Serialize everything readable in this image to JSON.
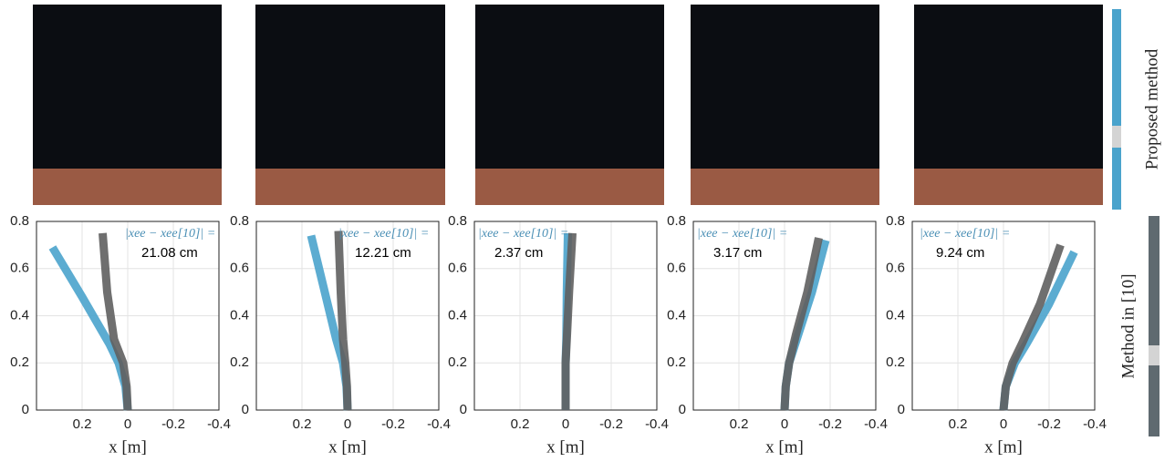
{
  "legend": [
    {
      "name": "Proposed method",
      "color": "#4aa3cc"
    },
    {
      "name": "Method in [10]",
      "color": "#5f6a70"
    }
  ],
  "chart_data": [
    {
      "type": "line",
      "annotation": "|xee − xee[10]| =",
      "error_label": "21.08 cm",
      "xlabel": "x [m]",
      "xlim": [
        0.4,
        -0.4
      ],
      "xticks": [
        0.2,
        0,
        -0.2,
        -0.4
      ],
      "ylim": [
        0,
        0.8
      ],
      "yticks": [
        0,
        0.2,
        0.4,
        0.6,
        0.8
      ],
      "grid": true,
      "series": [
        {
          "color": "#4aa3cc",
          "x": [
            0,
            0.01,
            0.04,
            0.08,
            0.2,
            0.33
          ],
          "y": [
            0,
            0.1,
            0.2,
            0.28,
            0.48,
            0.69
          ]
        },
        {
          "color": "#5f5f5f",
          "x": [
            0,
            0.005,
            0.02,
            0.06,
            0.09,
            0.11
          ],
          "y": [
            0,
            0.1,
            0.2,
            0.3,
            0.5,
            0.75
          ]
        }
      ]
    },
    {
      "type": "line",
      "annotation": "|xee − xee[10]| =",
      "error_label": "12.21 cm",
      "xlabel": "x [m]",
      "xlim": [
        0.4,
        -0.4
      ],
      "xticks": [
        0.2,
        0,
        -0.2,
        -0.4
      ],
      "ylim": [
        0,
        0.8
      ],
      "yticks": [
        0,
        0.2,
        0.4,
        0.6,
        0.8
      ],
      "grid": true,
      "series": [
        {
          "color": "#4aa3cc",
          "x": [
            0,
            0.005,
            0.02,
            0.05,
            0.1,
            0.16
          ],
          "y": [
            0,
            0.1,
            0.2,
            0.3,
            0.5,
            0.74
          ]
        },
        {
          "color": "#5f5f5f",
          "x": [
            0,
            0.003,
            0.01,
            0.02,
            0.03,
            0.04
          ],
          "y": [
            0,
            0.1,
            0.2,
            0.3,
            0.5,
            0.76
          ]
        }
      ]
    },
    {
      "type": "line",
      "annotation": "|xee − xee[10]| =",
      "error_label": "2.37 cm",
      "xlabel": "x [m]",
      "xlim": [
        0.4,
        -0.4
      ],
      "xticks": [
        0.2,
        0,
        -0.2,
        -0.4
      ],
      "ylim": [
        0,
        0.8
      ],
      "yticks": [
        0,
        0.2,
        0.4,
        0.6,
        0.8
      ],
      "grid": true,
      "series": [
        {
          "color": "#4aa3cc",
          "x": [
            0,
            0,
            -0.003,
            -0.005,
            -0.01
          ],
          "y": [
            0,
            0.2,
            0.3,
            0.5,
            0.75
          ]
        },
        {
          "color": "#5f5f5f",
          "x": [
            0,
            0,
            -0.005,
            -0.015,
            -0.03
          ],
          "y": [
            0,
            0.2,
            0.3,
            0.5,
            0.75
          ]
        }
      ]
    },
    {
      "type": "line",
      "annotation": "|xee − xee[10]| =",
      "error_label": "3.17 cm",
      "xlabel": "x [m]",
      "xlim": [
        0.4,
        -0.4
      ],
      "xticks": [
        0.2,
        0,
        -0.2,
        -0.4
      ],
      "ylim": [
        0,
        0.8
      ],
      "yticks": [
        0,
        0.2,
        0.4,
        0.6,
        0.8
      ],
      "grid": true,
      "series": [
        {
          "color": "#4aa3cc",
          "x": [
            0,
            -0.005,
            -0.02,
            -0.06,
            -0.12,
            -0.18
          ],
          "y": [
            0,
            0.1,
            0.2,
            0.32,
            0.5,
            0.72
          ]
        },
        {
          "color": "#5f5f5f",
          "x": [
            0,
            -0.005,
            -0.02,
            -0.05,
            -0.1,
            -0.15
          ],
          "y": [
            0,
            0.1,
            0.2,
            0.32,
            0.5,
            0.73
          ]
        }
      ]
    },
    {
      "type": "line",
      "annotation": "|xee − xee[10]| =",
      "error_label": "9.24 cm",
      "xlabel": "x [m]",
      "xlim": [
        0.4,
        -0.4
      ],
      "xticks": [
        0.2,
        0,
        -0.2,
        -0.4
      ],
      "ylim": [
        0,
        0.8
      ],
      "yticks": [
        0,
        0.2,
        0.4,
        0.6,
        0.8
      ],
      "grid": true,
      "series": [
        {
          "color": "#4aa3cc",
          "x": [
            0,
            -0.01,
            -0.05,
            -0.1,
            -0.2,
            -0.31
          ],
          "y": [
            0,
            0.1,
            0.2,
            0.28,
            0.45,
            0.67
          ]
        },
        {
          "color": "#5f5f5f",
          "x": [
            0,
            -0.01,
            -0.04,
            -0.08,
            -0.16,
            -0.25
          ],
          "y": [
            0,
            0.1,
            0.2,
            0.28,
            0.45,
            0.7
          ]
        }
      ]
    }
  ]
}
